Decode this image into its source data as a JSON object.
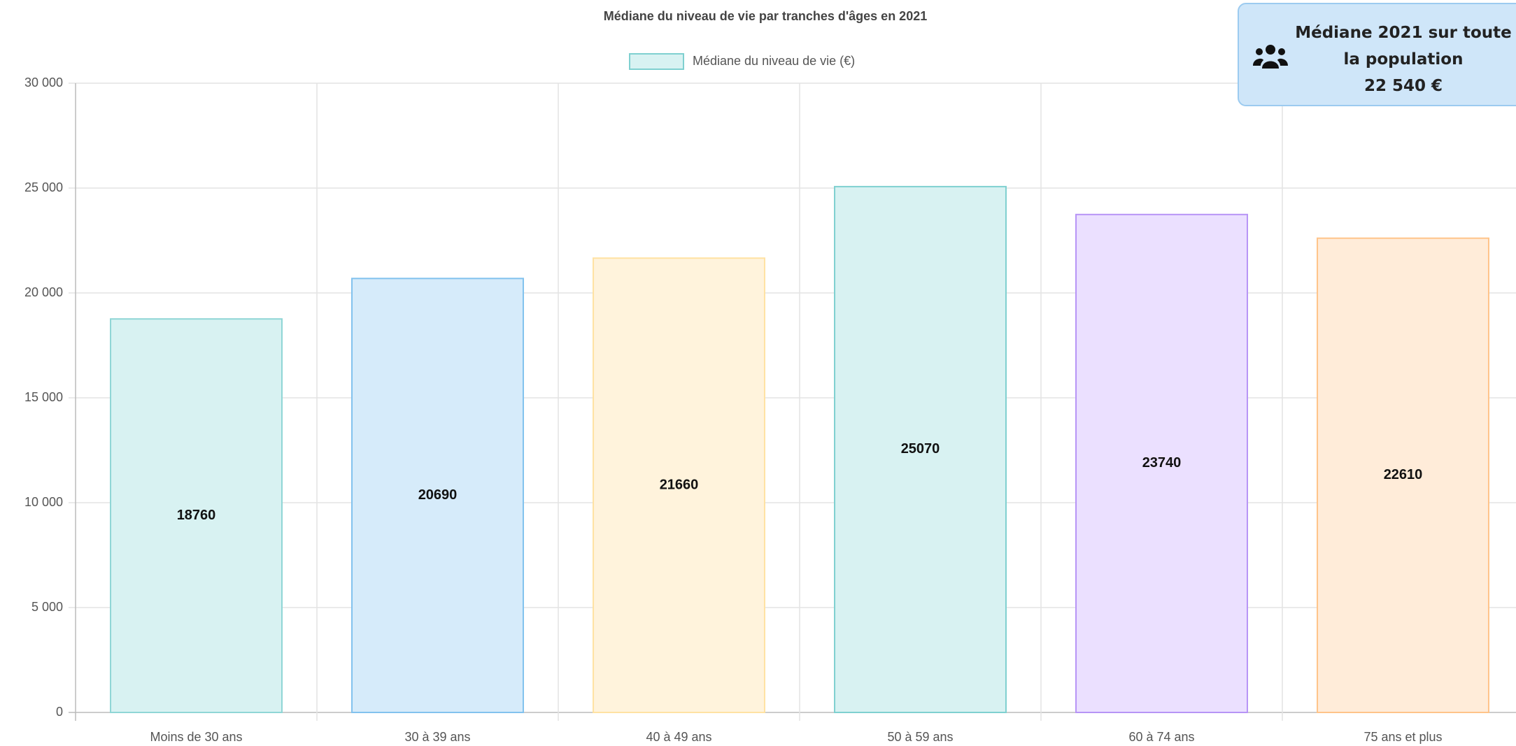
{
  "chart_data": {
    "type": "bar",
    "title": "Médiane du niveau de vie par tranches d'âges en 2021",
    "legend_label": "Médiane du niveau de vie (€)",
    "legend_color": "#d8f2f2",
    "legend_border": "#7fd0d0",
    "categories": [
      "Moins de 30 ans",
      "30 à 39 ans",
      "40 à 49 ans",
      "50 à 59 ans",
      "60 à 74 ans",
      "75 ans et plus"
    ],
    "values": [
      18760,
      20690,
      21660,
      25070,
      23740,
      22610
    ],
    "colors": [
      "#d8f2f2",
      "#d6ebfa",
      "#fff3dc",
      "#d8f2f2",
      "#ebe0ff",
      "#ffecd9"
    ],
    "border_colors": [
      "#8fd6d6",
      "#82c2ee",
      "#ffe2a3",
      "#7fd0d0",
      "#b794f6",
      "#ffc48a"
    ],
    "ylim": [
      0,
      30000
    ],
    "yticks": [
      0,
      {
        "value": 5000,
        "label": "5 000"
      },
      {
        "value": 10000,
        "label": "10 000"
      },
      {
        "value": 15000,
        "label": "15 000"
      },
      {
        "value": 20000,
        "label": "20 000"
      },
      {
        "value": 25000,
        "label": "25 000"
      },
      {
        "value": 30000,
        "label": "30 000"
      }
    ],
    "grid": true
  },
  "info_box": {
    "title": "Médiane 2021 sur toute la population",
    "value": "22 540 €"
  }
}
